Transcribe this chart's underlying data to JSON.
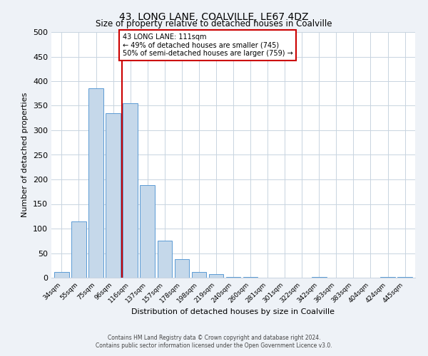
{
  "title": "43, LONG LANE, COALVILLE, LE67 4DZ",
  "subtitle": "Size of property relative to detached houses in Coalville",
  "xlabel": "Distribution of detached houses by size in Coalville",
  "ylabel": "Number of detached properties",
  "bar_labels": [
    "34sqm",
    "55sqm",
    "75sqm",
    "96sqm",
    "116sqm",
    "137sqm",
    "157sqm",
    "178sqm",
    "198sqm",
    "219sqm",
    "240sqm",
    "260sqm",
    "281sqm",
    "301sqm",
    "322sqm",
    "342sqm",
    "363sqm",
    "383sqm",
    "404sqm",
    "424sqm",
    "445sqm"
  ],
  "bar_values": [
    12,
    115,
    385,
    335,
    355,
    188,
    76,
    38,
    12,
    7,
    2,
    2,
    0,
    0,
    0,
    2,
    0,
    0,
    0,
    2,
    2
  ],
  "bar_color": "#c5d8ea",
  "bar_edge_color": "#5b9bd5",
  "vline_color": "#cc0000",
  "annotation_text": "43 LONG LANE: 111sqm\n← 49% of detached houses are smaller (745)\n50% of semi-detached houses are larger (759) →",
  "ylim": [
    0,
    500
  ],
  "yticks": [
    0,
    50,
    100,
    150,
    200,
    250,
    300,
    350,
    400,
    450,
    500
  ],
  "footer_line1": "Contains HM Land Registry data © Crown copyright and database right 2024.",
  "footer_line2": "Contains public sector information licensed under the Open Government Licence v3.0.",
  "background_color": "#eef2f7",
  "plot_background_color": "#ffffff",
  "grid_color": "#c8d4e0"
}
